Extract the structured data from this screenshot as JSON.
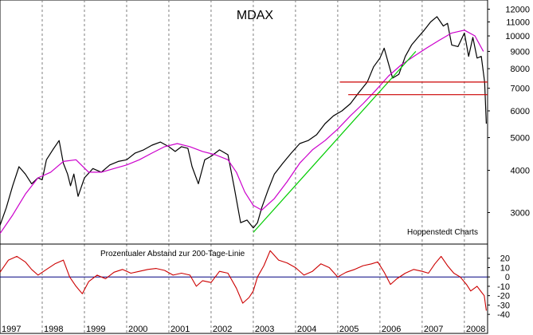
{
  "chart_data": [
    {
      "type": "line",
      "title": "MDAX",
      "source": "Hoppenstedt Charts",
      "y_scale": "log",
      "ylim": [
        2500,
        12500
      ],
      "y_ticks": [
        12000,
        11000,
        10000,
        9000,
        8000,
        7000,
        6000,
        5000,
        4000,
        3000
      ],
      "grid": "vertical",
      "x_tick_labels": [
        "1997",
        "1998",
        "1999",
        "2000",
        "2001",
        "2002",
        "2003",
        "2004",
        "2005",
        "2006",
        "2007",
        "2008"
      ],
      "xlim": [
        1997.0,
        2008.55
      ],
      "series": [
        {
          "color": "#000000",
          "x": [
            1997.0,
            1997.15,
            1997.3,
            1997.45,
            1997.6,
            1997.75,
            1997.9,
            1998.0,
            1998.1,
            1998.25,
            1998.4,
            1998.5,
            1998.6,
            1998.67,
            1998.75,
            1998.85,
            1999.0,
            1999.2,
            1999.4,
            1999.6,
            1999.8,
            2000.0,
            2000.2,
            2000.4,
            2000.6,
            2000.8,
            2001.0,
            2001.15,
            2001.3,
            2001.45,
            2001.55,
            2001.7,
            2001.85,
            2002.0,
            2002.2,
            2002.4,
            2002.55,
            2002.7,
            2002.85,
            2003.0,
            2003.1,
            2003.2,
            2003.35,
            2003.5,
            2003.7,
            2003.9,
            2004.1,
            2004.3,
            2004.5,
            2004.7,
            2004.9,
            2005.1,
            2005.3,
            2005.5,
            2005.7,
            2005.85,
            2006.0,
            2006.1,
            2006.2,
            2006.3,
            2006.45,
            2006.6,
            2006.75,
            2006.9,
            2007.05,
            2007.2,
            2007.35,
            2007.5,
            2007.6,
            2007.7,
            2007.85,
            2008.0,
            2008.1,
            2008.2,
            2008.3,
            2008.4,
            2008.48,
            2008.52
          ],
          "values": [
            2750,
            3100,
            3600,
            4100,
            3900,
            3650,
            3800,
            3750,
            4300,
            4600,
            4900,
            4200,
            3900,
            3600,
            3900,
            3350,
            3800,
            4050,
            3950,
            4150,
            4250,
            4300,
            4500,
            4600,
            4750,
            4850,
            4700,
            4550,
            4700,
            4650,
            4100,
            3650,
            4300,
            4400,
            4600,
            4450,
            3550,
            2800,
            2850,
            2700,
            2800,
            3100,
            3500,
            3900,
            4200,
            4500,
            4800,
            4900,
            5100,
            5500,
            5800,
            6000,
            6300,
            6800,
            7300,
            8100,
            8600,
            9200,
            8300,
            7500,
            7700,
            8700,
            9400,
            9900,
            10400,
            11000,
            11400,
            10700,
            10900,
            9400,
            9300,
            10200,
            8700,
            9900,
            8600,
            8700,
            7300,
            5500
          ]
        },
        {
          "color": "#cc00cc",
          "x": [
            1997.0,
            1997.3,
            1997.6,
            1997.9,
            1998.2,
            1998.5,
            1998.8,
            1999.1,
            1999.4,
            1999.7,
            2000.0,
            2000.3,
            2000.6,
            2000.9,
            2001.2,
            2001.5,
            2001.8,
            2002.1,
            2002.4,
            2002.6,
            2002.8,
            2003.0,
            2003.2,
            2003.5,
            2003.8,
            2004.1,
            2004.4,
            2004.7,
            2005.0,
            2005.3,
            2005.6,
            2005.9,
            2006.2,
            2006.5,
            2006.8,
            2007.1,
            2007.4,
            2007.7,
            2008.0,
            2008.25,
            2008.45
          ],
          "values": [
            2600,
            2950,
            3400,
            3800,
            3950,
            4250,
            4300,
            3950,
            3950,
            4050,
            4150,
            4300,
            4500,
            4700,
            4800,
            4700,
            4550,
            4450,
            4300,
            3950,
            3450,
            3150,
            3050,
            3300,
            3700,
            4200,
            4600,
            4900,
            5300,
            5800,
            6300,
            6900,
            7600,
            8200,
            8700,
            9200,
            9700,
            10200,
            10400,
            10000,
            9000
          ]
        },
        {
          "color": "#00cc00",
          "x": [
            2003.0,
            2006.85
          ],
          "values": [
            2620,
            9000
          ]
        },
        {
          "color": "#cc0000",
          "x": [
            2005.05,
            2008.55
          ],
          "values": [
            7300,
            7300
          ]
        },
        {
          "color": "#cc0000",
          "x": [
            2005.25,
            2008.55
          ],
          "values": [
            6700,
            6700
          ]
        }
      ]
    },
    {
      "type": "line",
      "title": "Prozentualer Abstand zur 200-Tage-Linie",
      "ylim": [
        -45,
        30
      ],
      "y_ticks": [
        20,
        10,
        0,
        -10,
        -20,
        -30,
        -40
      ],
      "reference_line": 0,
      "reference_line_color": "#000080",
      "x_tick_labels": [
        "1997",
        "1998",
        "1999",
        "2000",
        "2001",
        "2002",
        "2003",
        "2004",
        "2005",
        "2006",
        "2007",
        "2008"
      ],
      "xlim": [
        1997.0,
        2008.55
      ],
      "series": [
        {
          "color": "#cc0000",
          "x": [
            1997.0,
            1997.2,
            1997.4,
            1997.6,
            1997.75,
            1997.9,
            1998.1,
            1998.3,
            1998.5,
            1998.65,
            1998.8,
            1998.95,
            1999.1,
            1999.3,
            1999.5,
            1999.7,
            1999.9,
            2000.1,
            2000.3,
            2000.5,
            2000.7,
            2000.9,
            2001.1,
            2001.3,
            2001.5,
            2001.65,
            2001.8,
            2002.0,
            2002.2,
            2002.4,
            2002.6,
            2002.75,
            2002.9,
            2003.0,
            2003.1,
            2003.25,
            2003.4,
            2003.6,
            2003.8,
            2004.0,
            2004.2,
            2004.4,
            2004.6,
            2004.8,
            2005.0,
            2005.2,
            2005.4,
            2005.6,
            2005.8,
            2005.95,
            2006.1,
            2006.25,
            2006.4,
            2006.6,
            2006.8,
            2007.0,
            2007.15,
            2007.3,
            2007.45,
            2007.6,
            2007.75,
            2007.9,
            2008.05,
            2008.15,
            2008.3,
            2008.4,
            2008.47,
            2008.52
          ],
          "values": [
            5,
            18,
            22,
            16,
            8,
            2,
            8,
            14,
            18,
            0,
            -10,
            -18,
            -5,
            2,
            -2,
            5,
            8,
            4,
            6,
            8,
            9,
            7,
            2,
            4,
            2,
            -10,
            -4,
            -6,
            6,
            4,
            -12,
            -28,
            -22,
            -15,
            0,
            12,
            28,
            18,
            15,
            10,
            2,
            6,
            14,
            10,
            0,
            5,
            8,
            12,
            14,
            16,
            5,
            -8,
            -2,
            4,
            8,
            6,
            4,
            14,
            22,
            12,
            4,
            0,
            -8,
            -15,
            -10,
            -16,
            -20,
            -36
          ]
        }
      ]
    }
  ]
}
